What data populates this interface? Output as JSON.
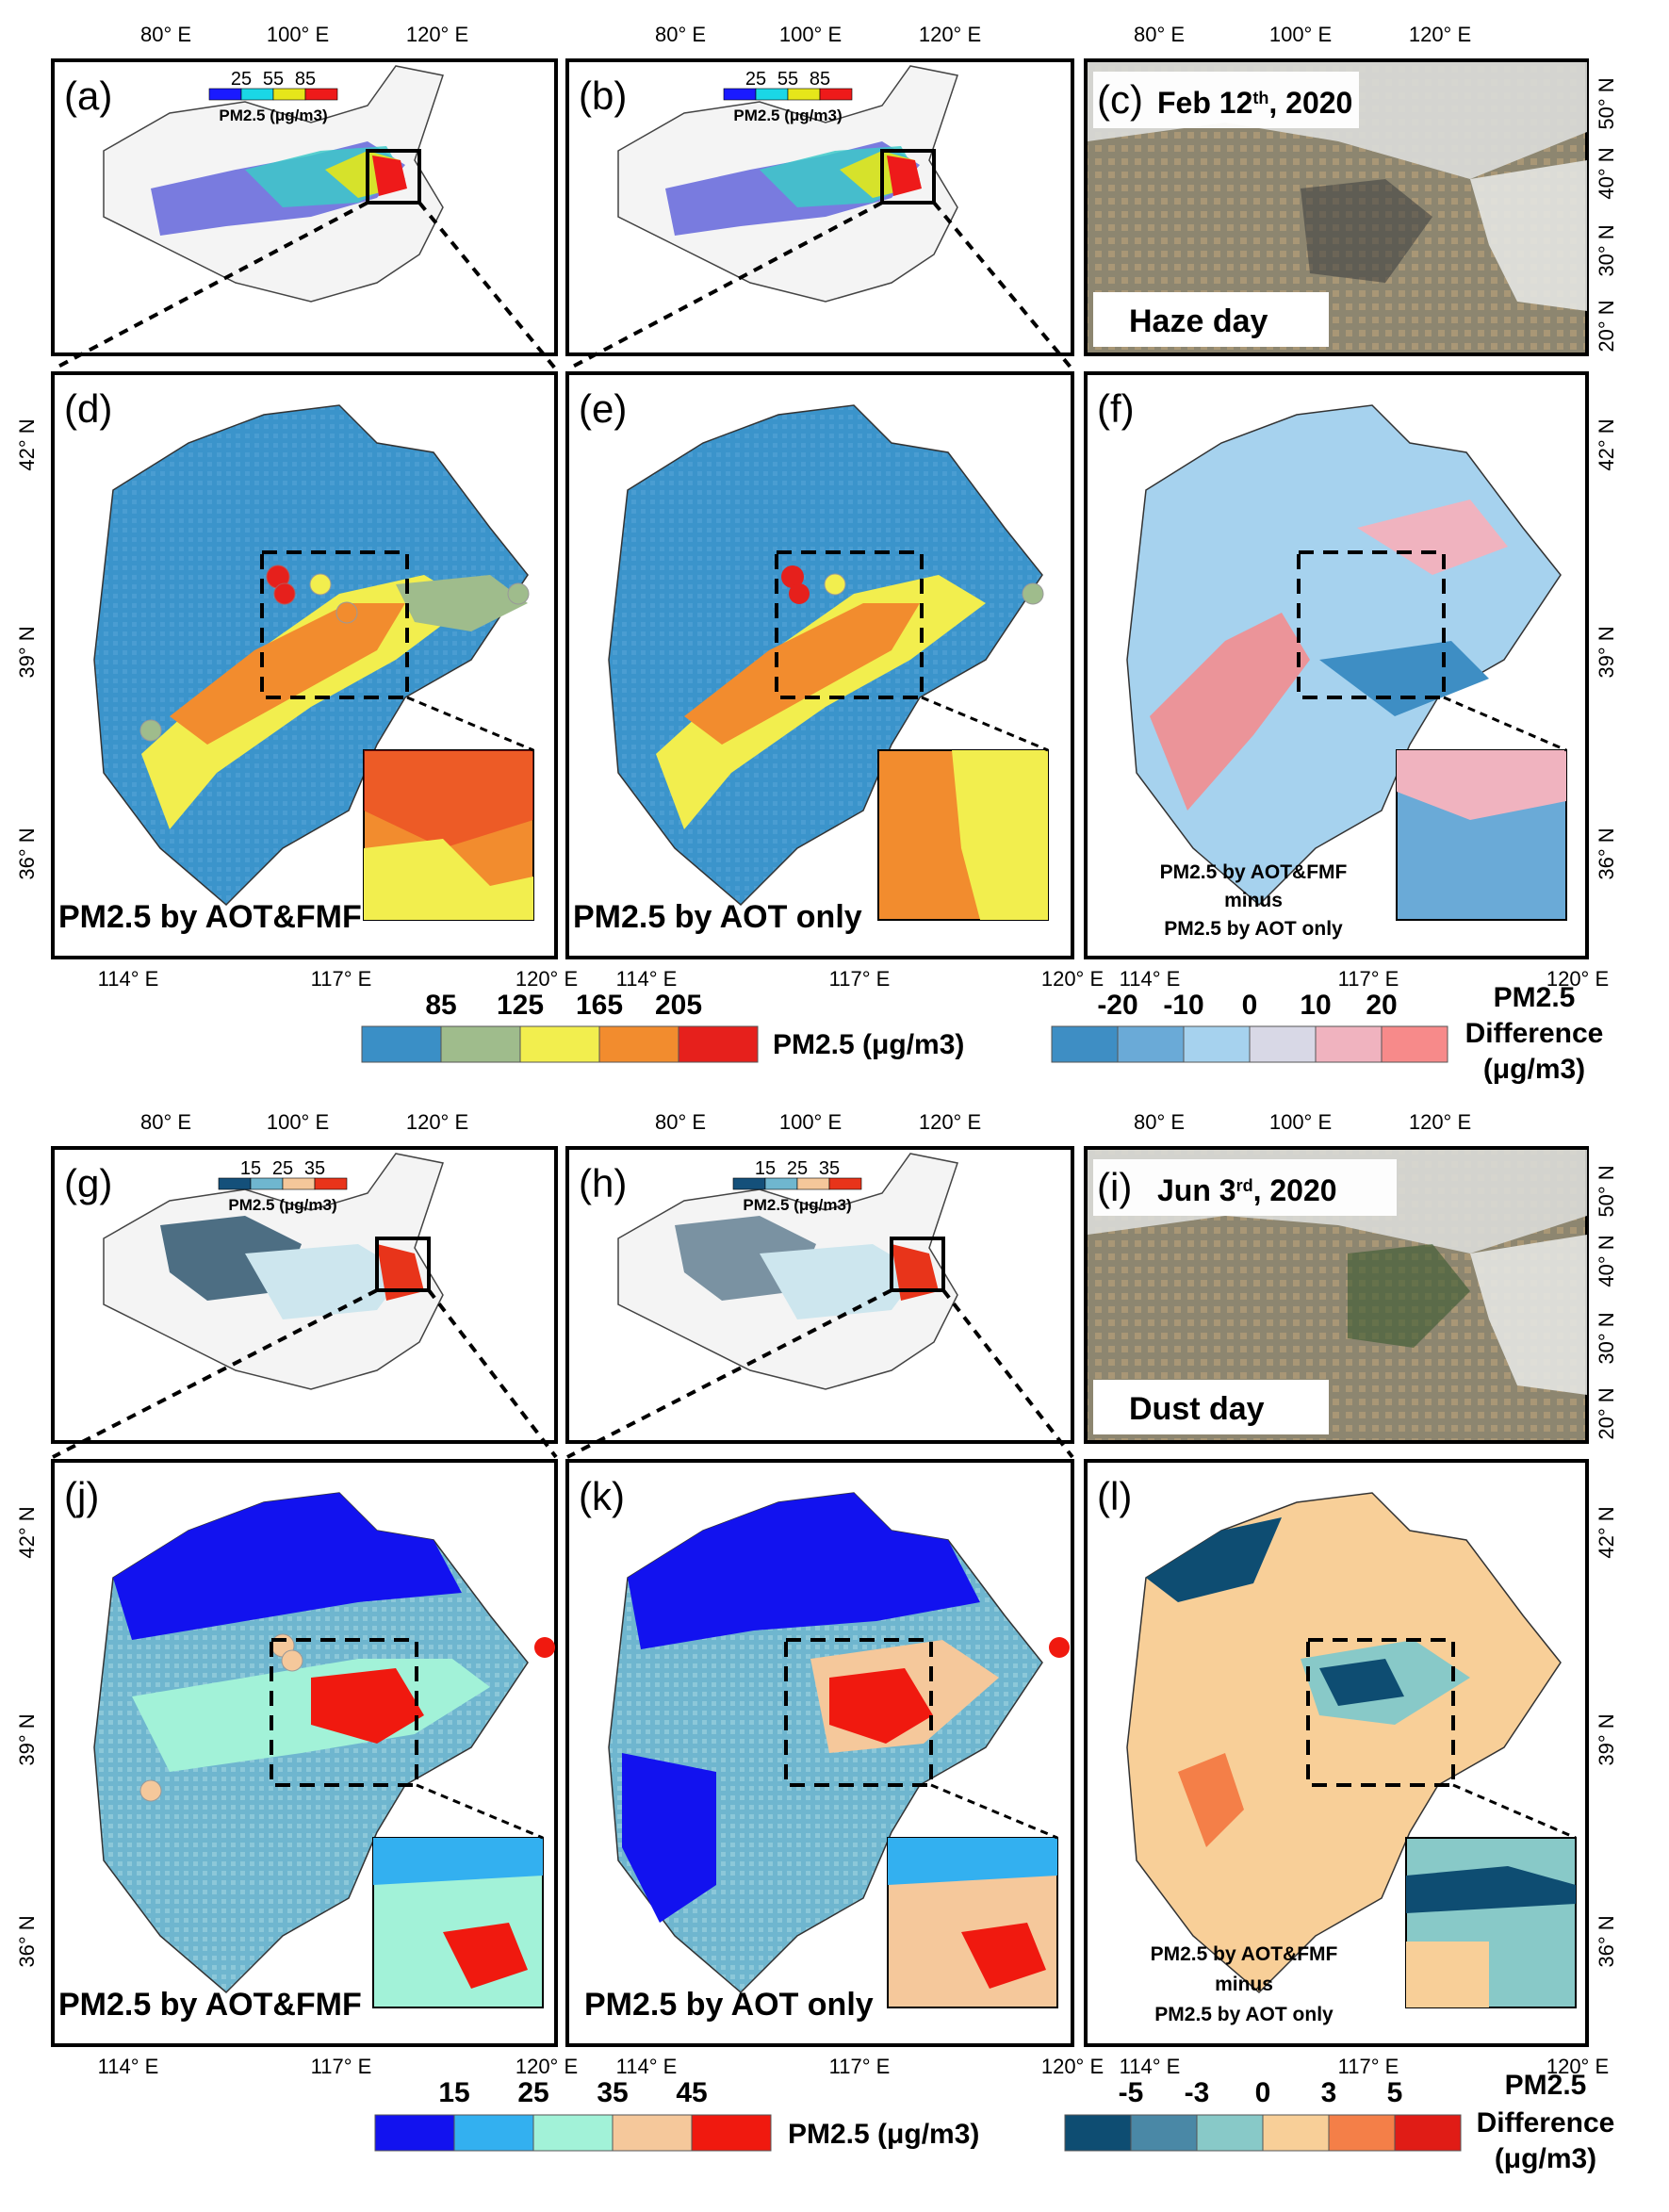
{
  "figure": {
    "map_colors": {
      "bg": "#ffffff",
      "mask_main": "#3b94cb",
      "haze_blue": "#4447d6",
      "haze_teal": "#3dc9c9",
      "dust_navy": "#16425e",
      "dust_light": "#cde6ee",
      "satellite_cloud": "#dadbd8",
      "satellite_land": "#9a8466",
      "satellite_dark": "#3a3d3e"
    },
    "top_axis_lon": [
      "80° E",
      "100° E",
      "120° E"
    ],
    "right_axis_lat": [
      "50° N",
      "40° N",
      "30° N",
      "20° N"
    ],
    "bottom_axis_lon": [
      "114° E",
      "117° E",
      "120° E"
    ],
    "left_axis_lat": [
      "42° N",
      "39° N",
      "36° N"
    ],
    "haze_case": {
      "panels": {
        "a": "(a)",
        "b": "(b)",
        "c": "(c)",
        "d": "(d)",
        "e": "(e)",
        "f": "(f)"
      },
      "date_text": "Feb 12th, 2020",
      "date_main": "Feb 12",
      "date_sup": "th",
      "date_tail": ", 2020",
      "day_label": "Haze day",
      "inset_legend_values": [
        "25",
        "55",
        "85"
      ],
      "inset_legend_colors": [
        "#1a1aff",
        "#1ad7e6",
        "#e6e61a",
        "#ee1a1a"
      ],
      "inset_legend_unit": "PM2.5 (μg/m3)",
      "method_d": "PM2.5 by AOT&FMF",
      "method_e": "PM2.5 by AOT only",
      "diff_line1": "PM2.5 by AOT&FMF",
      "diff_line2": "minus",
      "diff_line3": "PM2.5 by AOT only"
    },
    "dust_case": {
      "panels": {
        "g": "(g)",
        "h": "(h)",
        "i": "(i)",
        "j": "(j)",
        "k": "(k)",
        "l": "(l)"
      },
      "date_text": "Jun 3rd, 2020",
      "date_main": "Jun 3",
      "date_sup": "rd",
      "date_tail": ", 2020",
      "day_label": "Dust day",
      "inset_legend_values": [
        "15",
        "25",
        "35"
      ],
      "inset_legend_colors": [
        "#14507a",
        "#6fb6cf",
        "#f5c79a",
        "#e8341a"
      ],
      "inset_legend_unit": "PM2.5 (μg/m3)",
      "method_j": "PM2.5 by AOT&FMF",
      "method_k": "PM2.5 by AOT only",
      "diff_line1": "PM2.5 by AOT&FMF",
      "diff_line2": "minus",
      "diff_line3": "PM2.5 by AOT only"
    }
  },
  "chart_data": [
    {
      "type": "heatmap",
      "title": "Haze day PM2.5 colorbar",
      "colorbar_ticks": [
        85,
        125,
        165,
        205
      ],
      "colorbar_colors": [
        "#3a8fc6",
        "#9fbc8c",
        "#f2ee4e",
        "#f28c2e",
        "#e6201c"
      ],
      "colorbar_unit": "PM2.5 (μg/m3)"
    },
    {
      "type": "heatmap",
      "title": "Haze day PM2.5 difference colorbar",
      "colorbar_ticks": [
        -20,
        -10,
        0,
        10,
        20
      ],
      "colorbar_colors": [
        "#3e8ec4",
        "#6aaad7",
        "#a6d2ee",
        "#d8d8e6",
        "#f0b3bf",
        "#f78a8a"
      ],
      "colorbar_unit_line1": "PM2.5",
      "colorbar_unit_line2": "Difference",
      "colorbar_unit_line3": "(μg/m3)"
    },
    {
      "type": "heatmap",
      "title": "Dust day PM2.5 colorbar",
      "colorbar_ticks": [
        15,
        25,
        35,
        45
      ],
      "colorbar_colors": [
        "#1212ef",
        "#33b0f0",
        "#a2f2d8",
        "#f5c89b",
        "#f0190f"
      ],
      "colorbar_unit": "PM2.5 (μg/m3)"
    },
    {
      "type": "heatmap",
      "title": "Dust day PM2.5 difference colorbar",
      "colorbar_ticks": [
        -5,
        -3,
        0,
        3,
        5
      ],
      "colorbar_colors": [
        "#0e4d72",
        "#4a88a6",
        "#88c9c8",
        "#f8cf98",
        "#f47f48",
        "#e01c16"
      ],
      "colorbar_unit_line1": "PM2.5",
      "colorbar_unit_line2": "Difference",
      "colorbar_unit_line3": "(μg/m3)"
    }
  ]
}
